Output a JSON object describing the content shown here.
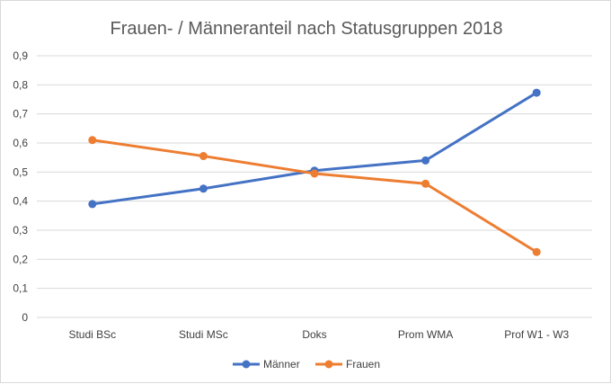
{
  "chart_data": {
    "type": "line",
    "title": "Frauen- / Männeranteil nach Statusgruppen 2018",
    "xlabel": "",
    "ylabel": "",
    "categories": [
      "Studi BSc",
      "Studi MSc",
      "Doks",
      "Prom WMA",
      "Prof W1 - W3"
    ],
    "ylim": [
      0,
      0.9
    ],
    "yticks": [
      "0",
      "0,1",
      "0,2",
      "0,3",
      "0,4",
      "0,5",
      "0,6",
      "0,7",
      "0,8",
      "0,9"
    ],
    "grid": true,
    "legend_position": "bottom",
    "series": [
      {
        "name": "Männer",
        "color": "#4472C4",
        "values": [
          0.39,
          0.443,
          0.505,
          0.54,
          0.773
        ]
      },
      {
        "name": "Frauen",
        "color": "#ED7D31",
        "values": [
          0.61,
          0.555,
          0.495,
          0.46,
          0.225
        ]
      }
    ]
  }
}
